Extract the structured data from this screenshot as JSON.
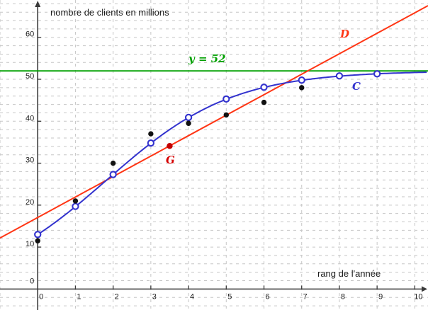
{
  "chart_data": {
    "type": "scatter+line",
    "title": "",
    "y_axis_label": "nombre de clients en millions",
    "x_axis_label": "rang de l'année",
    "xlim": [
      -1.0,
      10.35
    ],
    "ylim": [
      -5.0,
      68.9
    ],
    "x_ticks": [
      0,
      1,
      2,
      3,
      4,
      5,
      6,
      7,
      8,
      9,
      10
    ],
    "x_tick_labels": [
      "0",
      "1",
      "2",
      "3",
      "4",
      "5",
      "6",
      "7",
      "8",
      "9",
      "10"
    ],
    "y_ticks": [
      0,
      10,
      20,
      30,
      40,
      50,
      60
    ],
    "y_tick_labels": [
      "0",
      "10",
      "20",
      "30",
      "40",
      "50",
      "60"
    ],
    "grid": {
      "x_step": 1,
      "y_step": 2,
      "style": "dashed",
      "color": "#c6c6c6"
    },
    "axis_color": "#3a3a3a",
    "tick_label_color": "#1c1c1c",
    "annotations": {
      "curve": "C",
      "line": "D",
      "mean_point": "G",
      "asymptote": "y = 52"
    },
    "series": [
      {
        "name": "asymptote",
        "type": "hline",
        "label": "y = 52",
        "y": 52,
        "color": "#00A000"
      },
      {
        "name": "line-D",
        "type": "line",
        "label": "D",
        "slope": 4.88,
        "intercept": 17.05,
        "color": "#FF3514"
      },
      {
        "name": "curve-C",
        "type": "logistic-curve",
        "label": "C",
        "params": {
          "L": 52,
          "b": 3,
          "k": 0.6
        },
        "domain": [
          0,
          10.3
        ],
        "color": "#3333CE",
        "marker": "open-circle",
        "marker_x": [
          0,
          1,
          2,
          3,
          4,
          5,
          6,
          7,
          8,
          9
        ],
        "marker_y": [
          13.0,
          19.7,
          27.3,
          34.8,
          40.9,
          45.3,
          48.1,
          49.8,
          50.8,
          51.3
        ]
      },
      {
        "name": "observed-data",
        "type": "scatter",
        "color": "#111111",
        "x": [
          0,
          1,
          2,
          3,
          4,
          5,
          6,
          7
        ],
        "y": [
          11.5,
          21,
          30,
          37,
          39.5,
          41.5,
          44.5,
          48
        ]
      },
      {
        "name": "mean-point-G",
        "type": "point",
        "label": "G",
        "x": 3.5,
        "y": 34.1,
        "color": "#C40000"
      }
    ]
  }
}
